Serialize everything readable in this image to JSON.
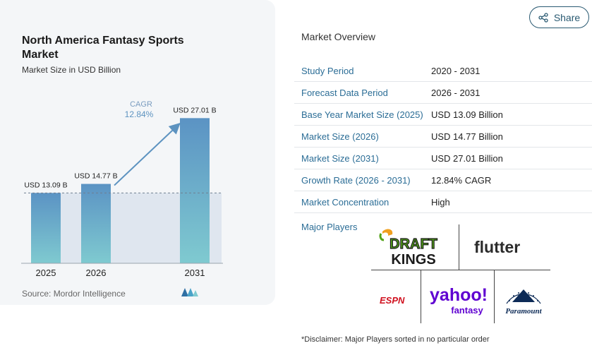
{
  "share_button": {
    "label": "Share",
    "icon": "share-icon"
  },
  "chart": {
    "title": "North America Fantasy Sports Market",
    "subtitle": "Market Size in USD Billion",
    "source": "Source: Mordor Intelligence",
    "cagr_label": "CAGR",
    "cagr_value": "12.84%",
    "colors": {
      "bar_top": "#5b93c4",
      "bar_bottom": "#7fcad0",
      "arrow": "#5d93c0",
      "band": "#dfe6ef"
    }
  },
  "chart_data": {
    "type": "bar",
    "title": "North America Fantasy Sports Market",
    "subtitle": "Market Size in USD Billion",
    "categories": [
      "2025",
      "2026",
      "2031"
    ],
    "values": [
      13.09,
      14.77,
      27.01
    ],
    "data_labels": [
      "USD 13.09 B",
      "USD 14.77 B",
      "USD 27.01 B"
    ],
    "annotation": {
      "label": "CAGR",
      "value": "12.84%"
    },
    "grid": false,
    "ylim": [
      0,
      28.5
    ]
  },
  "overview": {
    "title": "Market Overview",
    "rows": [
      {
        "label": "Study Period",
        "value": "2020 - 2031"
      },
      {
        "label": "Forecast Data Period",
        "value": "2026 - 2031"
      },
      {
        "label": "Base Year Market Size (2025)",
        "value": "USD 13.09 Billion"
      },
      {
        "label": "Market Size (2026)",
        "value": "USD 14.77 Billion"
      },
      {
        "label": "Market Size (2031)",
        "value": "USD 27.01 Billion"
      },
      {
        "label": "Growth Rate (2026 - 2031)",
        "value": "12.84% CAGR"
      },
      {
        "label": "Market Concentration",
        "value": "High"
      }
    ]
  },
  "players": {
    "label": "Major Players",
    "logos": {
      "draftkings_line1": "DRAFT",
      "draftkings_line2": "KINGS",
      "flutter": "flutter",
      "espn": "ESPN",
      "yahoo": "yahoo!",
      "yahoo_sub": "fantasy",
      "paramount": "Paramount"
    }
  },
  "disclaimer": "*Disclaimer: Major Players sorted in no particular order"
}
